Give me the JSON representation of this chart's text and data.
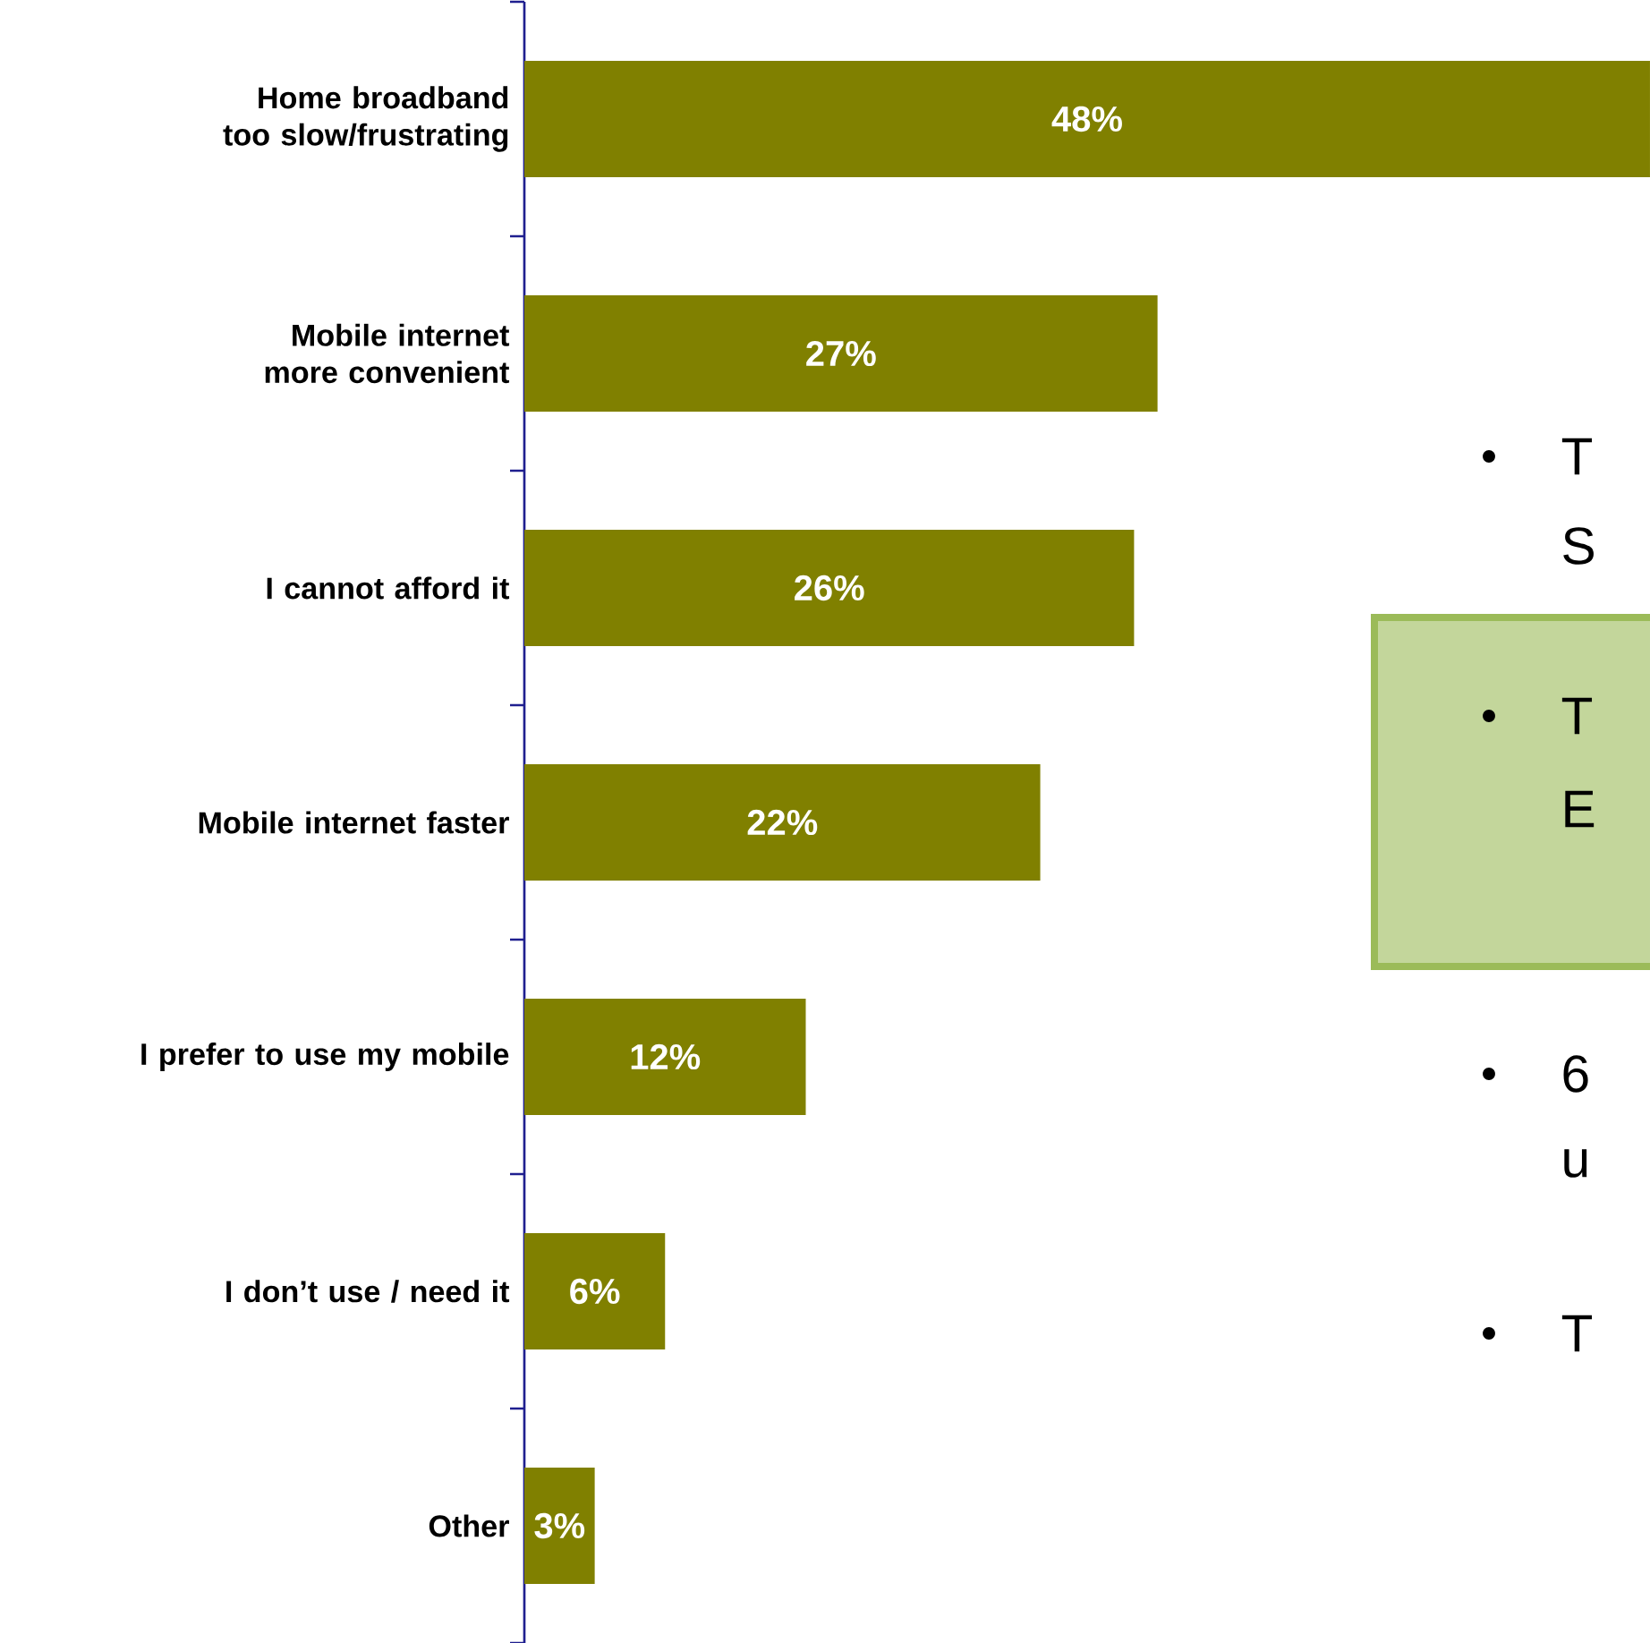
{
  "chart_data": {
    "type": "bar",
    "orientation": "horizontal",
    "color": "#808000",
    "categories": [
      "Home broadband too slow/frustrating",
      "Mobile internet more convenient",
      "I cannot afford it",
      "Mobile internet faster",
      "I prefer to use my mobile",
      "I don’t use / need it",
      "Other"
    ],
    "values": [
      48,
      27,
      26,
      22,
      12,
      6,
      3
    ],
    "value_labels": [
      "48%",
      "27%",
      "26%",
      "22%",
      "12%",
      "6%",
      "3%"
    ],
    "annotations": [
      "T",
      "S",
      "T",
      "E",
      "6",
      "u",
      "T"
    ]
  }
}
